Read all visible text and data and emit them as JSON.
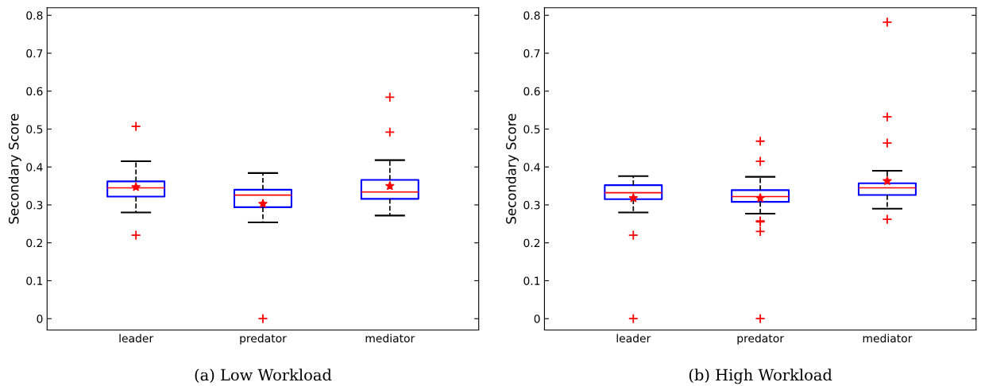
{
  "chart_data": [
    {
      "type": "box",
      "ylabel": "Secondary Score",
      "categories": [
        "leader",
        "predator",
        "mediator"
      ],
      "ylim": [
        -0.03,
        0.82
      ],
      "yticks": [
        0,
        0.1,
        0.2,
        0.3,
        0.4,
        0.5,
        0.6,
        0.7,
        0.8
      ],
      "grid": false,
      "annotations": [
        "(a) Low Workload"
      ],
      "boxes": [
        {
          "low": 0.28,
          "q1": 0.322,
          "median": 0.345,
          "q3": 0.362,
          "high": 0.415,
          "mean": 0.347,
          "outliers": [
            0.507,
            0.22
          ]
        },
        {
          "low": 0.254,
          "q1": 0.294,
          "median": 0.326,
          "q3": 0.34,
          "high": 0.384,
          "mean": 0.303,
          "outliers": [
            0
          ]
        },
        {
          "low": 0.272,
          "q1": 0.316,
          "median": 0.334,
          "q3": 0.366,
          "high": 0.418,
          "mean": 0.35,
          "outliers": [
            0.584,
            0.492
          ]
        }
      ]
    },
    {
      "type": "box",
      "ylabel": "Secondary Score",
      "categories": [
        "leader",
        "predator",
        "mediator"
      ],
      "ylim": [
        -0.03,
        0.82
      ],
      "yticks": [
        0,
        0.1,
        0.2,
        0.3,
        0.4,
        0.5,
        0.6,
        0.7,
        0.8
      ],
      "grid": false,
      "annotations": [
        "(b) High Workload"
      ],
      "boxes": [
        {
          "low": 0.28,
          "q1": 0.315,
          "median": 0.332,
          "q3": 0.352,
          "high": 0.376,
          "mean": 0.318,
          "outliers": [
            0.22,
            0
          ]
        },
        {
          "low": 0.277,
          "q1": 0.308,
          "median": 0.322,
          "q3": 0.339,
          "high": 0.374,
          "mean": 0.318,
          "outliers": [
            0.468,
            0.415,
            0.258,
            0.255,
            0.23,
            0
          ]
        },
        {
          "low": 0.29,
          "q1": 0.326,
          "median": 0.345,
          "q3": 0.357,
          "high": 0.39,
          "mean": 0.363,
          "outliers": [
            0.782,
            0.532,
            0.463,
            0.262
          ]
        }
      ]
    }
  ]
}
